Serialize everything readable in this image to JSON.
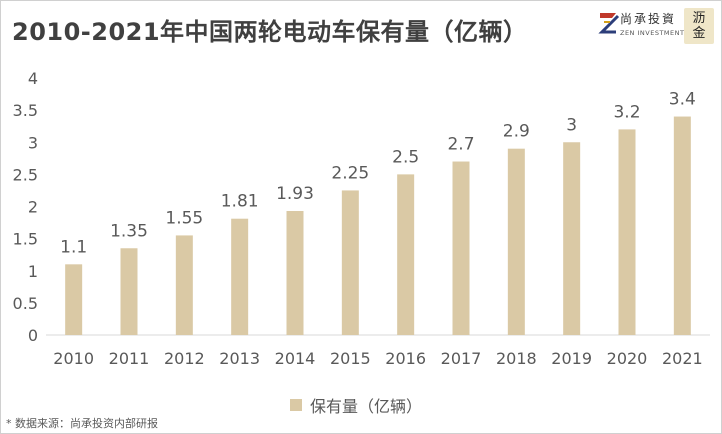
{
  "title": "2010-2021年中国两轮电动车保有量（亿辆）",
  "brand": {
    "cn_name": "尚承投資",
    "en_name": "ZEN INVESTMENT",
    "seal_chars": [
      "沥",
      "金"
    ]
  },
  "footnote": "* 数据来源：尚承投资内部研报",
  "colors": {
    "bar": "#dac9a5",
    "text": "#595959",
    "title": "#404040"
  },
  "chart_data": {
    "type": "bar",
    "title": "2010-2021年中国两轮电动车保有量（亿辆）",
    "categories": [
      "2010",
      "2011",
      "2012",
      "2013",
      "2014",
      "2015",
      "2016",
      "2017",
      "2018",
      "2019",
      "2020",
      "2021"
    ],
    "series": [
      {
        "name": "保有量（亿辆）",
        "values": [
          1.1,
          1.35,
          1.55,
          1.81,
          1.93,
          2.25,
          2.5,
          2.7,
          2.9,
          3,
          3.2,
          3.4
        ]
      }
    ],
    "value_labels": [
      "1.1",
      "1.35",
      "1.55",
      "1.81",
      "1.93",
      "2.25",
      "2.5",
      "2.7",
      "2.9",
      "3",
      "3.2",
      "3.4"
    ],
    "ylim": [
      0,
      4
    ],
    "yticks": [
      "0",
      "0.5",
      "1",
      "1.5",
      "2",
      "2.5",
      "3",
      "3.5",
      "4"
    ],
    "grid": false,
    "legend_position": "bottom"
  }
}
